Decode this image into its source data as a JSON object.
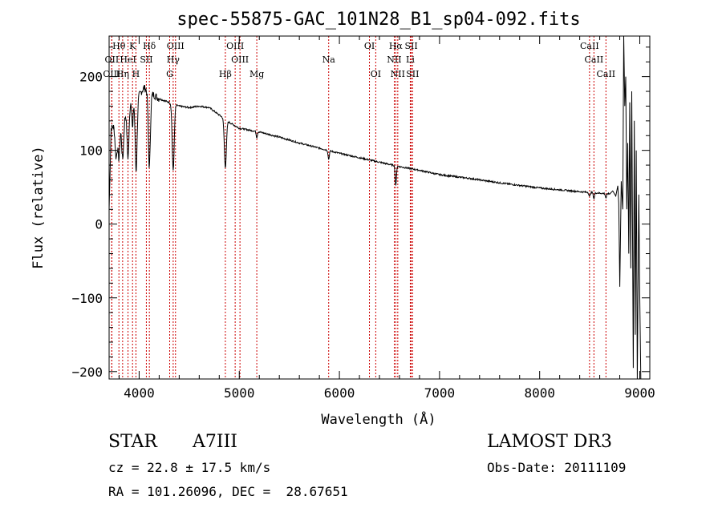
{
  "chart_data": {
    "type": "line",
    "title": "spec-55875-GAC_101N28_B1_sp04-092.fits",
    "xlabel": "Wavelength (Å)",
    "ylabel": "Flux (relative)",
    "xlim": [
      3700,
      9100
    ],
    "ylim": [
      -210,
      255
    ],
    "x_ticks": [
      4000,
      5000,
      6000,
      7000,
      8000,
      9000
    ],
    "x_tick_labels": [
      "4000",
      "5000",
      "6000",
      "7000",
      "8000",
      "9000"
    ],
    "y_ticks": [
      -200,
      -100,
      0,
      100,
      200
    ],
    "y_tick_labels": [
      "−200",
      "−100",
      "0",
      "100",
      "200"
    ],
    "grid": false,
    "line_color": "#000000",
    "marker_color": "#cc0000",
    "spectral_lines": [
      {
        "label": "Hθ",
        "wave": 3798,
        "row": 0
      },
      {
        "label": "K",
        "wave": 3934,
        "row": 0
      },
      {
        "label": "Hδ",
        "wave": 4102,
        "row": 0
      },
      {
        "label": "OIII",
        "wave": 4363,
        "row": 0
      },
      {
        "label": "OIII",
        "wave": 4959,
        "row": 0
      },
      {
        "label": "OI",
        "wave": 6300,
        "row": 0
      },
      {
        "label": "Hα",
        "wave": 6563,
        "row": 0
      },
      {
        "label": "SII",
        "wave": 6717,
        "row": 0
      },
      {
        "label": "CaII",
        "wave": 8498,
        "row": 0
      },
      {
        "label": "OII",
        "wave": 3727,
        "row": 1
      },
      {
        "label": "HeI",
        "wave": 3889,
        "row": 1
      },
      {
        "label": "SII",
        "wave": 4072,
        "row": 1
      },
      {
        "label": "Hγ",
        "wave": 4340,
        "row": 1
      },
      {
        "label": "OIII",
        "wave": 5007,
        "row": 1
      },
      {
        "label": "Na",
        "wave": 5893,
        "row": 1
      },
      {
        "label": "NII",
        "wave": 6548,
        "row": 1
      },
      {
        "label": "Li",
        "wave": 6708,
        "row": 1
      },
      {
        "label": "CaII",
        "wave": 8542,
        "row": 1
      },
      {
        "label": "OIII",
        "wave": 3727,
        "row": 2
      },
      {
        "label": "Hη",
        "wave": 3835,
        "row": 2
      },
      {
        "label": "H",
        "wave": 3968,
        "row": 2
      },
      {
        "label": "G",
        "wave": 4305,
        "row": 2
      },
      {
        "label": "Hβ",
        "wave": 4861,
        "row": 2
      },
      {
        "label": "Mg",
        "wave": 5175,
        "row": 2
      },
      {
        "label": "OI",
        "wave": 6363,
        "row": 2
      },
      {
        "label": "NII",
        "wave": 6583,
        "row": 2
      },
      {
        "label": "SII",
        "wave": 6731,
        "row": 2
      },
      {
        "label": "CaII",
        "wave": 8662,
        "row": 2
      }
    ],
    "continuum": [
      [
        3700,
        20
      ],
      [
        3720,
        130
      ],
      [
        3760,
        135
      ],
      [
        3800,
        140
      ],
      [
        3850,
        145
      ],
      [
        3900,
        165
      ],
      [
        3950,
        170
      ],
      [
        4000,
        175
      ],
      [
        4050,
        185
      ],
      [
        4100,
        178
      ],
      [
        4150,
        175
      ],
      [
        4200,
        170
      ],
      [
        4300,
        165
      ],
      [
        4400,
        160
      ],
      [
        4500,
        158
      ],
      [
        4600,
        160
      ],
      [
        4700,
        158
      ],
      [
        4800,
        148
      ],
      [
        4900,
        138
      ],
      [
        5000,
        130
      ],
      [
        5200,
        125
      ],
      [
        5400,
        118
      ],
      [
        5600,
        110
      ],
      [
        5800,
        103
      ],
      [
        6000,
        96
      ],
      [
        6200,
        90
      ],
      [
        6400,
        84
      ],
      [
        6600,
        78
      ],
      [
        6800,
        73
      ],
      [
        7000,
        67
      ],
      [
        7300,
        62
      ],
      [
        7600,
        56
      ],
      [
        8000,
        49
      ],
      [
        8400,
        44
      ],
      [
        8700,
        41
      ],
      [
        8800,
        40
      ],
      [
        8880,
        40
      ]
    ],
    "absorption": [
      {
        "wave": 3770,
        "depth": 45
      },
      {
        "wave": 3798,
        "depth": 50
      },
      {
        "wave": 3835,
        "depth": 55
      },
      {
        "wave": 3889,
        "depth": 70
      },
      {
        "wave": 3934,
        "depth": 40
      },
      {
        "wave": 3970,
        "depth": 100
      },
      {
        "wave": 4102,
        "depth": 100
      },
      {
        "wave": 4340,
        "depth": 90
      },
      {
        "wave": 4861,
        "depth": 65
      },
      {
        "wave": 5175,
        "depth": 8
      },
      {
        "wave": 5893,
        "depth": 12
      },
      {
        "wave": 6563,
        "depth": 28
      },
      {
        "wave": 8498,
        "depth": 6
      },
      {
        "wave": 8542,
        "depth": 8
      },
      {
        "wave": 8662,
        "depth": 6
      }
    ],
    "red_end": [
      [
        8700,
        41
      ],
      [
        8730,
        45
      ],
      [
        8760,
        38
      ],
      [
        8780,
        52
      ],
      [
        8790,
        28
      ],
      [
        8800,
        -85
      ],
      [
        8815,
        58
      ],
      [
        8830,
        20
      ],
      [
        8840,
        255
      ],
      [
        8850,
        160
      ],
      [
        8860,
        200
      ],
      [
        8870,
        20
      ],
      [
        8880,
        110
      ],
      [
        8890,
        -40
      ],
      [
        8900,
        165
      ],
      [
        8910,
        -60
      ],
      [
        8920,
        180
      ],
      [
        8935,
        -195
      ],
      [
        8945,
        140
      ],
      [
        8955,
        -150
      ],
      [
        8965,
        100
      ],
      [
        8975,
        -210
      ],
      [
        8990,
        40
      ],
      [
        9000,
        -100
      ],
      [
        9010,
        -210
      ]
    ]
  },
  "footer": {
    "object_class": "STAR",
    "subclass": "A7III",
    "survey": "LAMOST DR3",
    "cz": "cz = 22.8 ± 17.5 km/s",
    "obs_date": "Obs-Date: 20111109",
    "coords": "RA = 101.26096, DEC =  28.67651"
  }
}
